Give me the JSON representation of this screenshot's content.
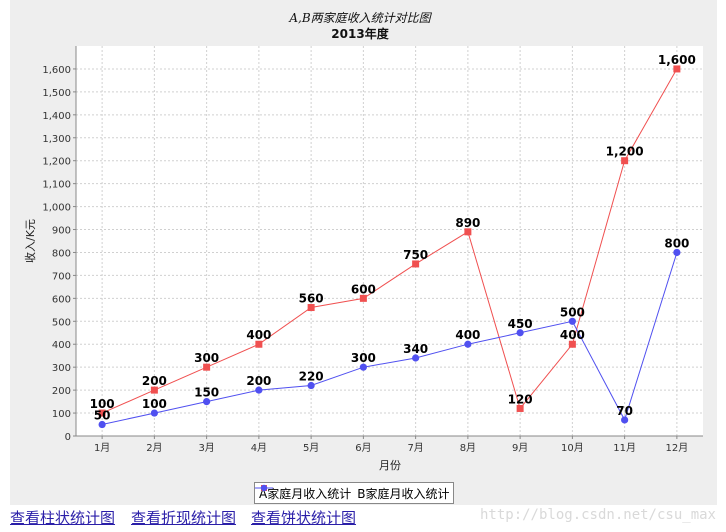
{
  "chart_data": {
    "type": "line",
    "title": "A,B两家庭收入统计对比图",
    "subtitle": "2013年度",
    "xlabel": "月份",
    "ylabel": "收入/K元",
    "categories": [
      "1月",
      "2月",
      "3月",
      "4月",
      "5月",
      "6月",
      "7月",
      "8月",
      "9月",
      "10月",
      "11月",
      "12月"
    ],
    "ylim": [
      0,
      1700
    ],
    "yticks": [
      0,
      100,
      200,
      300,
      400,
      500,
      600,
      700,
      800,
      900,
      1000,
      1100,
      1200,
      1300,
      1400,
      1500,
      1600
    ],
    "grid": true,
    "legend_position": "bottom",
    "series": [
      {
        "name": "A家庭月收入统计",
        "color": "#f05050",
        "marker": "square",
        "values": [
          100,
          200,
          300,
          400,
          560,
          600,
          750,
          890,
          120,
          400,
          1200,
          1600
        ]
      },
      {
        "name": "B家庭月收入统计",
        "color": "#5050f0",
        "marker": "circle",
        "values": [
          50,
          100,
          150,
          200,
          220,
          300,
          340,
          400,
          450,
          500,
          70,
          800
        ]
      }
    ]
  },
  "links": [
    {
      "label": "查看柱状统计图"
    },
    {
      "label": "查看折现统计图"
    },
    {
      "label": "查看饼状统计图"
    }
  ],
  "watermark": "http://blog.csdn.net/csu_max"
}
